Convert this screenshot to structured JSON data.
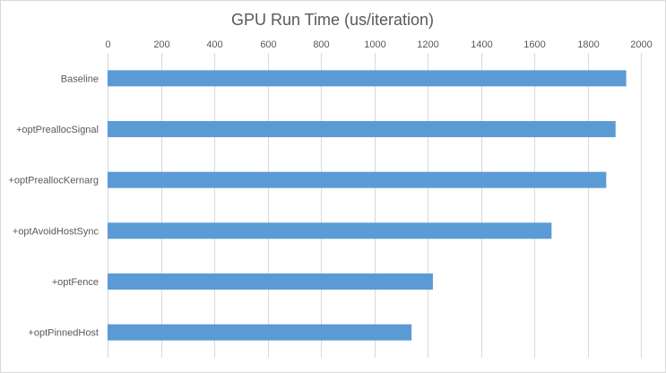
{
  "chart_data": {
    "type": "bar",
    "orientation": "horizontal",
    "title": "GPU Run Time (us/iteration)",
    "xlabel": "",
    "ylabel": "",
    "xlim": [
      0,
      2000
    ],
    "x_ticks": [
      0,
      200,
      400,
      600,
      800,
      1000,
      1200,
      1400,
      1600,
      1800,
      2000
    ],
    "x_axis_position": "top",
    "grid": true,
    "legend": "none",
    "categories": [
      "Baseline",
      "+optPreallocSignal",
      "+optPreallocKernarg",
      "+optAvoidHostSync",
      "+optFence",
      "+optPinnedHost"
    ],
    "values": [
      1945,
      1905,
      1870,
      1665,
      1220,
      1140
    ],
    "bar_color": "#5b9bd5"
  }
}
